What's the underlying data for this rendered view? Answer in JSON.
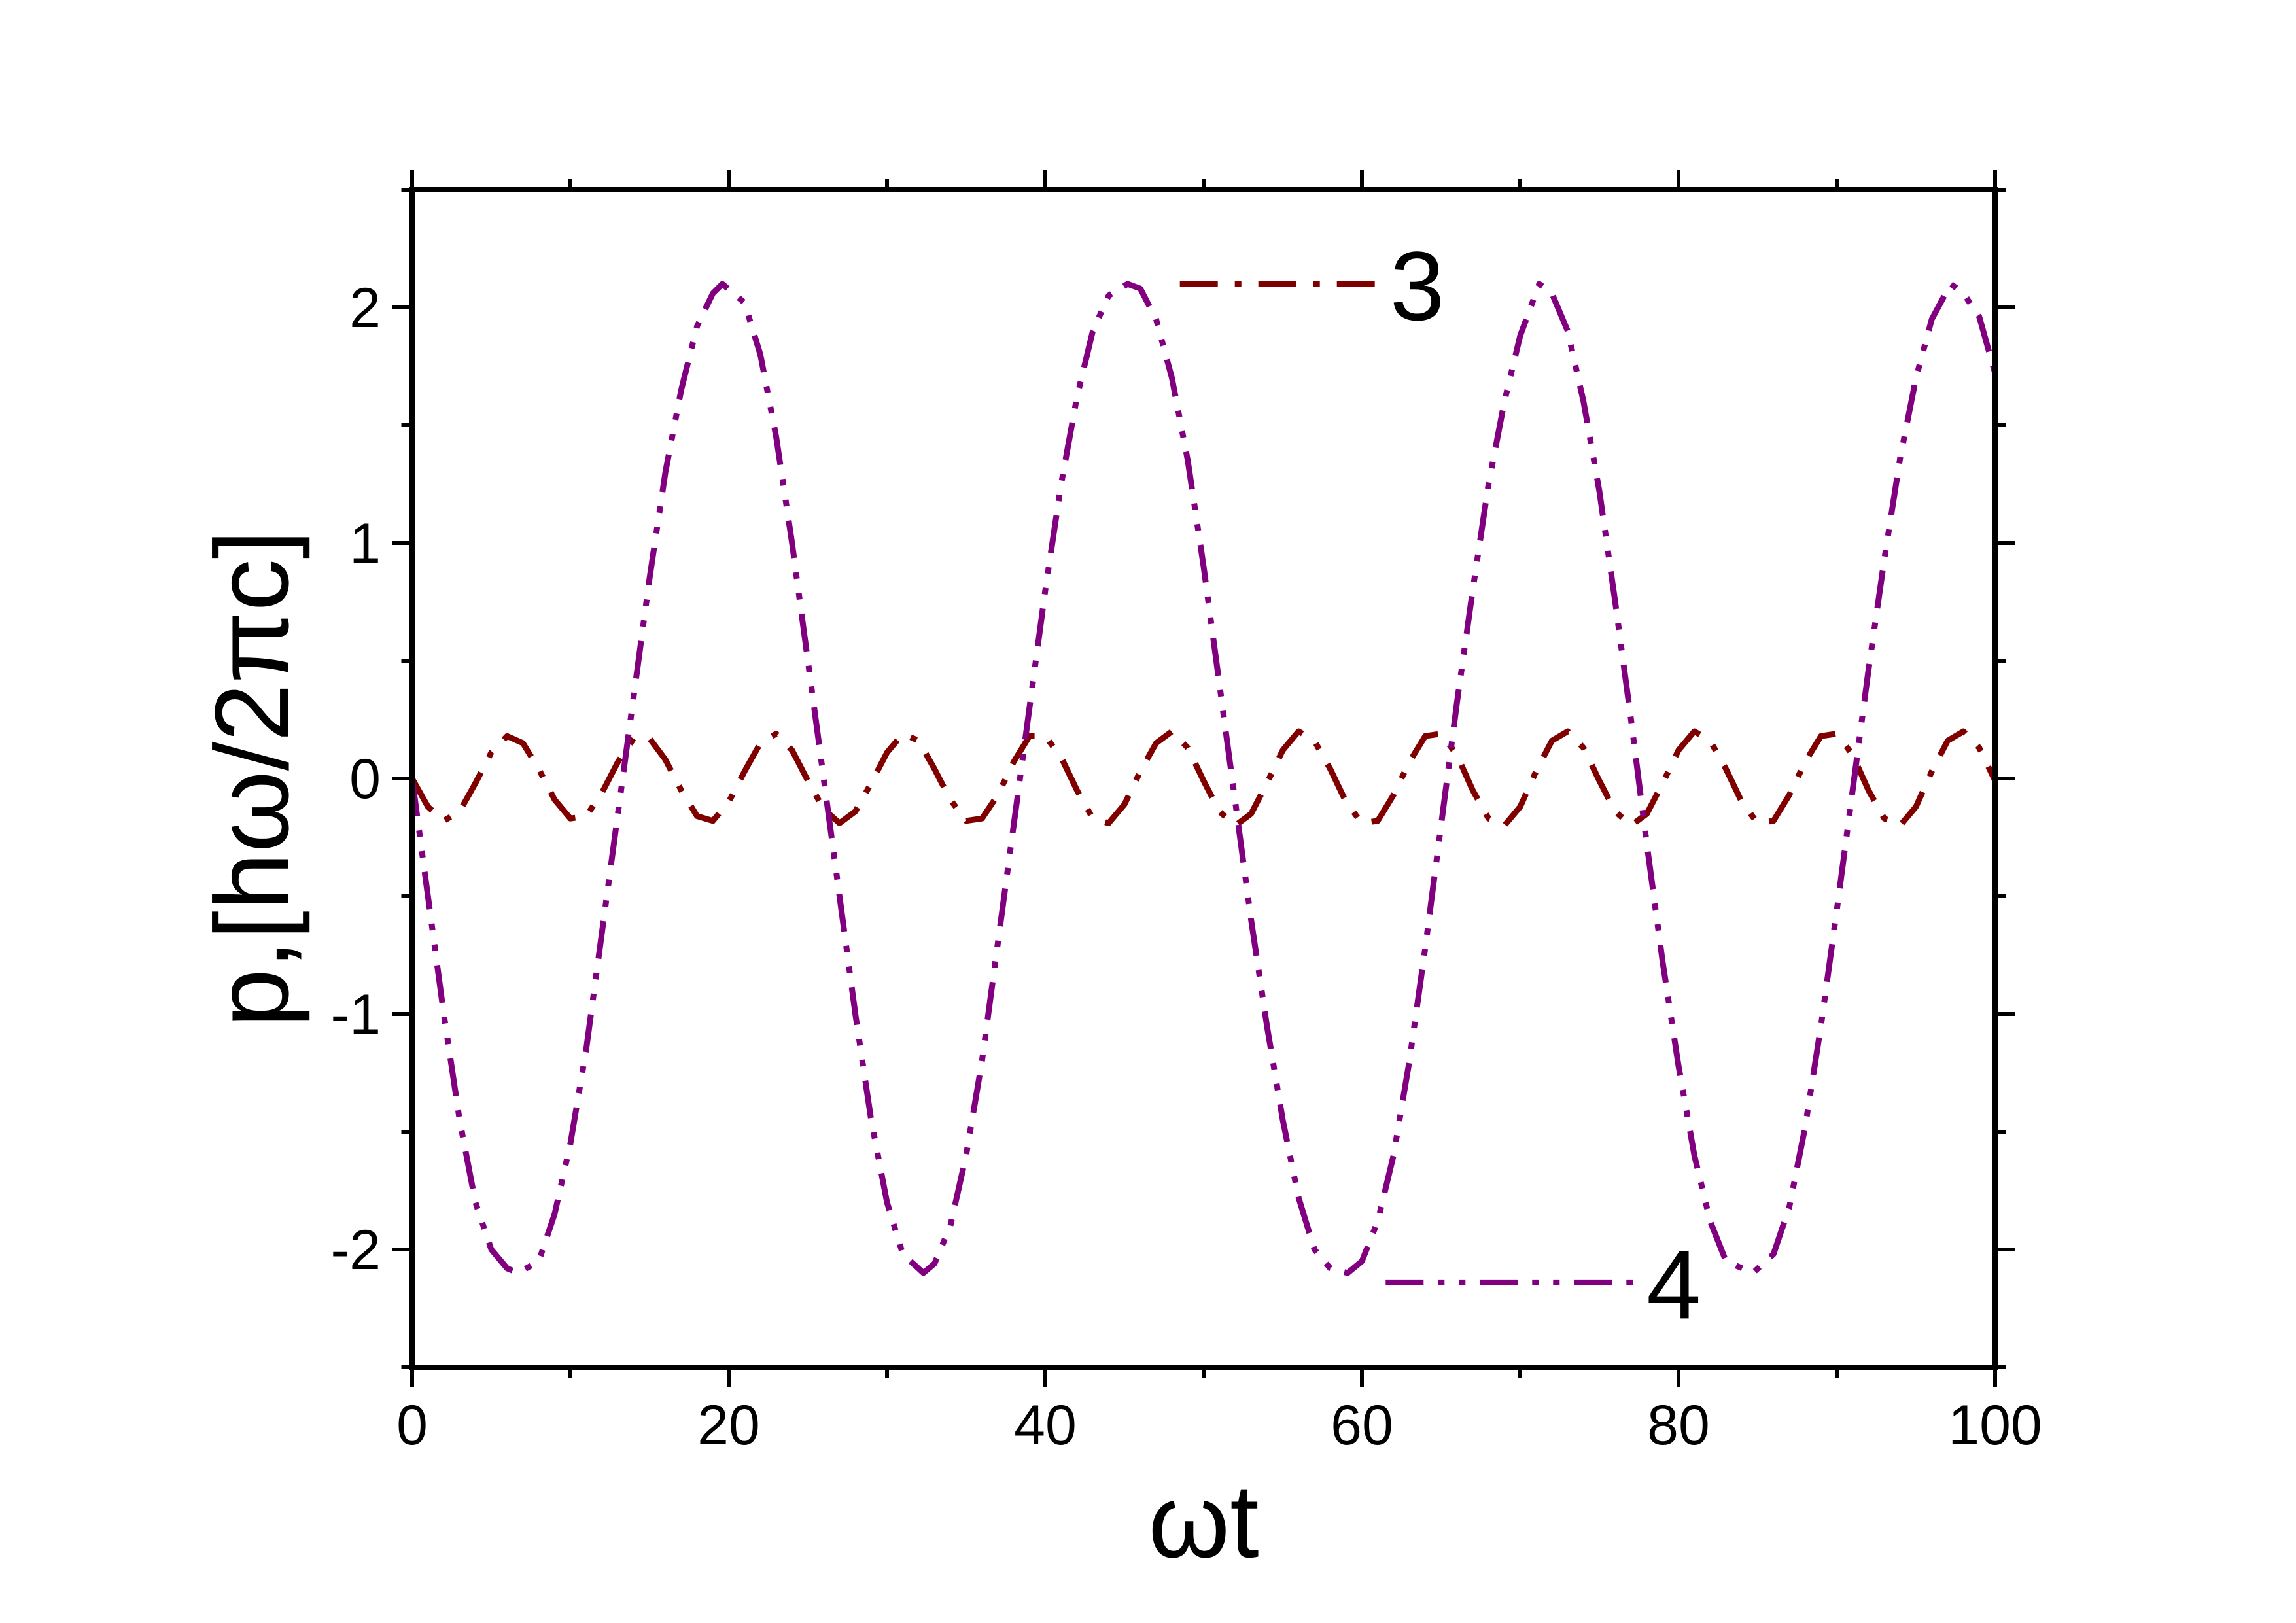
{
  "chart_data": {
    "type": "line",
    "xlabel": "ωt",
    "ylabel": "p,[hω/2πc]",
    "xlim": [
      0,
      100
    ],
    "ylim": [
      -2.5,
      2.5
    ],
    "x_major_ticks": [
      0,
      20,
      40,
      60,
      80,
      100
    ],
    "x_tick_labels": [
      "0",
      "20",
      "40",
      "60",
      "80",
      "100"
    ],
    "x_minor_ticks": [
      10,
      30,
      50,
      70,
      90
    ],
    "y_major_ticks": [
      -2,
      -1,
      0,
      1,
      2
    ],
    "y_tick_labels": [
      "-2",
      "-1",
      "0",
      "1",
      "2"
    ],
    "y_minor_ticks": [
      -2.5,
      -1.5,
      -0.5,
      0.5,
      1.5,
      2.5
    ],
    "grid": false,
    "legend": "none",
    "series": [
      {
        "label": "3",
        "color": "#800000",
        "line_style": "dash-dot",
        "description_points": {
          "x": [
            0,
            1,
            2,
            3,
            4,
            5,
            6,
            7,
            8,
            9,
            10,
            11,
            12,
            13,
            14,
            15,
            16,
            17,
            18,
            19,
            20,
            21,
            22,
            23,
            24,
            25,
            26,
            27,
            28,
            29,
            30,
            31,
            32,
            33,
            34,
            35,
            36,
            37,
            38,
            39,
            40,
            41,
            42,
            43,
            44,
            45,
            46,
            47,
            48,
            49,
            50,
            51,
            52,
            53,
            54,
            55,
            56,
            57,
            58,
            59,
            60,
            61,
            62,
            63,
            64,
            65,
            66,
            67,
            68,
            69,
            70,
            71,
            72,
            73,
            74,
            75,
            76,
            77,
            78,
            79,
            80,
            81,
            82,
            83,
            84,
            85,
            86,
            87,
            88,
            89,
            90,
            91,
            92,
            93,
            94,
            95,
            96,
            97,
            98,
            99,
            100
          ],
          "y": [
            0.0,
            -0.12,
            -0.18,
            -0.14,
            -0.02,
            0.11,
            0.18,
            0.15,
            0.04,
            -0.09,
            -0.17,
            -0.16,
            -0.06,
            0.07,
            0.17,
            0.17,
            0.08,
            -0.05,
            -0.16,
            -0.18,
            -0.1,
            0.03,
            0.15,
            0.19,
            0.12,
            -0.01,
            -0.13,
            -0.19,
            -0.14,
            -0.02,
            0.11,
            0.19,
            0.16,
            0.04,
            -0.09,
            -0.18,
            -0.17,
            -0.07,
            0.07,
            0.18,
            0.18,
            0.09,
            -0.05,
            -0.17,
            -0.19,
            -0.11,
            0.03,
            0.15,
            0.2,
            0.13,
            -0.01,
            -0.14,
            -0.2,
            -0.15,
            -0.02,
            0.12,
            0.2,
            0.16,
            0.04,
            -0.1,
            -0.19,
            -0.18,
            -0.07,
            0.07,
            0.18,
            0.19,
            0.1,
            -0.05,
            -0.17,
            -0.2,
            -0.12,
            0.03,
            0.16,
            0.2,
            0.13,
            -0.01,
            -0.14,
            -0.2,
            -0.15,
            -0.02,
            0.12,
            0.2,
            0.16,
            0.04,
            -0.1,
            -0.19,
            -0.18,
            -0.07,
            0.07,
            0.18,
            0.19,
            0.1,
            -0.05,
            -0.17,
            -0.2,
            -0.12,
            0.03,
            0.16,
            0.2,
            0.13,
            -0.01
          ]
        },
        "label_anchor": {
          "x": 63.5,
          "y": 2.1
        },
        "leader_from": {
          "x": 48.5,
          "y": 2.1
        }
      },
      {
        "label": "4",
        "color": "#800080",
        "line_style": "dash-dot-dot",
        "description_points": {
          "x": [
            0,
            1,
            2,
            3,
            4,
            5,
            6,
            6.7,
            8,
            9,
            10,
            11,
            12,
            13,
            14,
            15,
            16,
            17,
            18,
            19,
            19.6,
            21,
            22,
            23,
            24,
            25,
            26,
            27,
            28,
            29,
            30,
            31,
            32.3,
            33,
            34,
            35,
            36,
            37,
            38,
            39,
            40,
            41,
            42,
            43,
            44,
            45.2,
            46,
            47,
            48,
            49,
            50,
            51,
            52,
            53,
            54,
            55,
            56,
            57,
            58,
            59.1,
            60,
            61,
            62,
            63,
            64,
            65,
            66,
            67,
            68,
            69,
            70,
            71.2,
            72,
            73,
            74,
            75,
            76,
            77,
            78,
            79,
            80,
            81,
            82,
            83,
            84.7,
            86,
            87,
            88,
            89,
            90,
            91,
            92,
            93,
            94,
            95,
            96,
            97.2,
            98,
            99,
            100
          ],
          "y": [
            0.0,
            -0.5,
            -1.0,
            -1.45,
            -1.8,
            -2.0,
            -2.08,
            -2.1,
            -2.05,
            -1.85,
            -1.55,
            -1.15,
            -0.65,
            -0.15,
            0.35,
            0.85,
            1.3,
            1.65,
            1.92,
            2.06,
            2.1,
            2.02,
            1.8,
            1.45,
            1.0,
            0.5,
            0.0,
            -0.5,
            -1.0,
            -1.45,
            -1.8,
            -2.02,
            -2.1,
            -2.06,
            -1.9,
            -1.6,
            -1.2,
            -0.7,
            -0.2,
            0.3,
            0.8,
            1.25,
            1.62,
            1.9,
            2.05,
            2.1,
            2.08,
            1.95,
            1.7,
            1.35,
            0.9,
            0.4,
            -0.1,
            -0.6,
            -1.05,
            -1.45,
            -1.78,
            -2.0,
            -2.08,
            -2.1,
            -2.05,
            -1.88,
            -1.6,
            -1.2,
            -0.72,
            -0.2,
            0.32,
            0.8,
            1.25,
            1.6,
            1.88,
            2.1,
            2.06,
            1.9,
            1.6,
            1.22,
            0.75,
            0.25,
            -0.28,
            -0.78,
            -1.22,
            -1.6,
            -1.88,
            -2.05,
            -2.1,
            -2.02,
            -1.82,
            -1.48,
            -1.05,
            -0.56,
            -0.05,
            0.46,
            0.93,
            1.36,
            1.7,
            1.95,
            2.1,
            2.06,
            1.96,
            1.72
          ]
        },
        "label_anchor": {
          "x": 79.7,
          "y": -2.14
        },
        "leader_from": {
          "x": 61.5,
          "y": -2.14
        }
      }
    ]
  }
}
